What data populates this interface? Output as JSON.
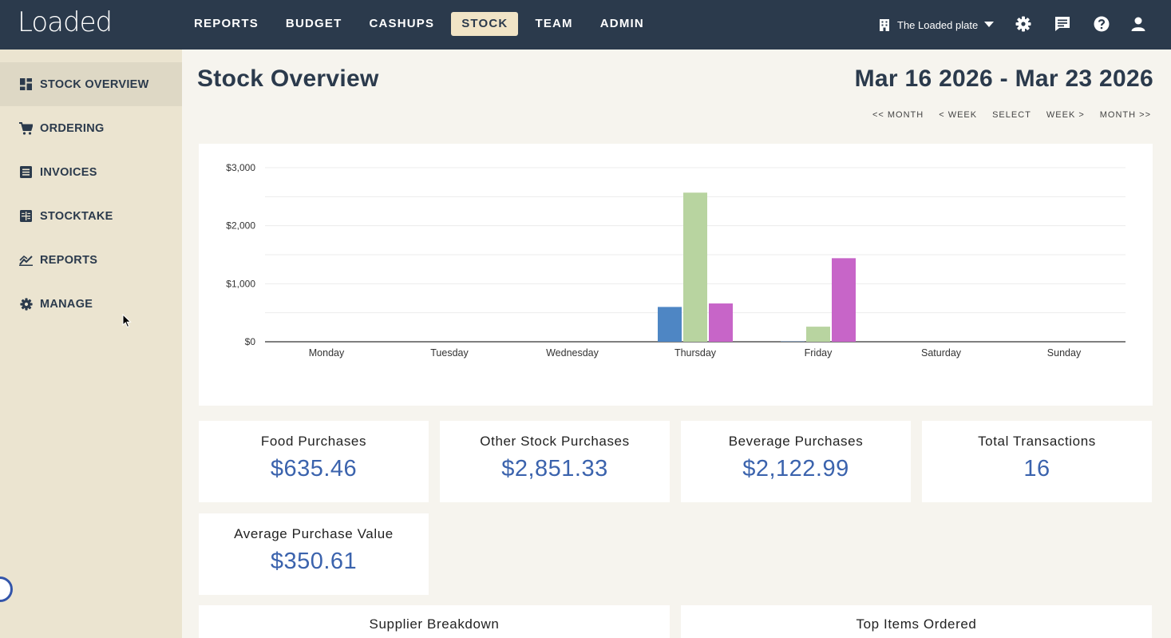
{
  "app": {
    "logo": "Loaded"
  },
  "topnav": {
    "items": [
      {
        "label": "REPORTS",
        "active": false
      },
      {
        "label": "BUDGET",
        "active": false
      },
      {
        "label": "CASHUPS",
        "active": false
      },
      {
        "label": "STOCK",
        "active": true
      },
      {
        "label": "TEAM",
        "active": false
      },
      {
        "label": "ADMIN",
        "active": false
      }
    ],
    "venue": "The Loaded plate",
    "icons": [
      "building-icon",
      "gear-icon",
      "chat-icon",
      "help-icon",
      "user-icon"
    ]
  },
  "sidebar": {
    "items": [
      {
        "label": "STOCK OVERVIEW",
        "icon": "dashboard-icon",
        "active": true
      },
      {
        "label": "ORDERING",
        "icon": "cart-icon",
        "active": false
      },
      {
        "label": "INVOICES",
        "icon": "receipt-icon",
        "active": false
      },
      {
        "label": "STOCKTAKE",
        "icon": "calculator-icon",
        "active": false
      },
      {
        "label": "REPORTS",
        "icon": "trend-icon",
        "active": false
      },
      {
        "label": "MANAGE",
        "icon": "gear-icon",
        "active": false
      }
    ]
  },
  "main": {
    "title": "Stock Overview",
    "date_range": "Mar 16 2026 - Mar 23 2026",
    "date_nav": [
      "<< MONTH",
      "< WEEK",
      "SELECT",
      "WEEK >",
      "MONTH >>"
    ]
  },
  "chart_data": {
    "type": "bar",
    "categories": [
      "Monday",
      "Tuesday",
      "Wednesday",
      "Thursday",
      "Friday",
      "Saturday",
      "Sunday"
    ],
    "series": [
      {
        "values": [
          0,
          0,
          0,
          600,
          5,
          0,
          0
        ],
        "color": "#4e86c4"
      },
      {
        "values": [
          0,
          0,
          0,
          2570,
          260,
          0,
          0
        ],
        "color": "#b8d4a0"
      },
      {
        "values": [
          0,
          0,
          0,
          660,
          1440,
          0,
          0
        ],
        "color": "#c765c8"
      }
    ],
    "y_ticks": [
      "$0",
      "$1,000",
      "$2,000",
      "$3,000"
    ],
    "ylim": [
      0,
      3000
    ],
    "grid": true
  },
  "stats": [
    {
      "label": "Food Purchases",
      "value": "$635.46"
    },
    {
      "label": "Other Stock Purchases",
      "value": "$2,851.33"
    },
    {
      "label": "Beverage Purchases",
      "value": "$2,122.99"
    },
    {
      "label": "Total Transactions",
      "value": "16"
    },
    {
      "label": "Average Purchase Value",
      "value": "$350.61"
    }
  ],
  "panels": {
    "supplier_breakdown": "Supplier Breakdown",
    "top_items": "Top Items Ordered"
  },
  "colors": {
    "navbar": "#2b3a4c",
    "accent": "#3b63ad",
    "active_tab": "#f1e4c6"
  }
}
